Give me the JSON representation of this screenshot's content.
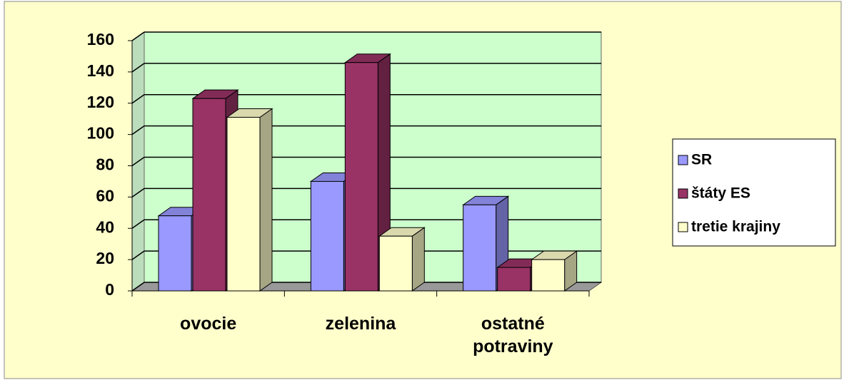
{
  "chart_data": {
    "type": "bar3d",
    "categories": [
      "ovocie",
      "zelenina",
      "ostatné potraviny"
    ],
    "series": [
      {
        "name": "SR",
        "color": "#9999ff",
        "values": [
          48,
          70,
          55
        ]
      },
      {
        "name": "štáty ES",
        "color": "#993366",
        "values": [
          123,
          146,
          15
        ]
      },
      {
        "name": "tretie krajiny",
        "color": "#ffffcc",
        "values": [
          111,
          35,
          20
        ]
      }
    ],
    "ylim": [
      0,
      160
    ],
    "yticks": [
      0,
      20,
      40,
      60,
      80,
      100,
      120,
      140,
      160
    ],
    "grid": true,
    "legend": "right"
  }
}
